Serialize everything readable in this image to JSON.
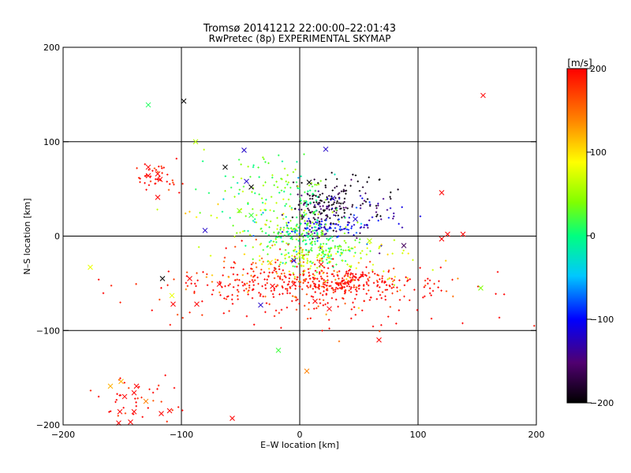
{
  "chart_data": {
    "type": "scatter",
    "title": "Tromsø 20141212 22:00:00–22:01:43",
    "subtitle": "RwPretec (8p) EXPERIMENTAL SKYMAP",
    "xlabel": "E–W location [km]",
    "ylabel": "N–S location [km]",
    "xlim": [
      -200,
      200
    ],
    "ylim": [
      -200,
      200
    ],
    "xticks": [
      -200,
      -100,
      0,
      100,
      200
    ],
    "yticks": [
      -200,
      -100,
      0,
      100,
      200
    ],
    "grid": true,
    "colorbar": {
      "label": "[m/s]",
      "range": [
        -200,
        200
      ],
      "ticks": [
        200,
        100,
        0,
        -100,
        -200
      ],
      "colormap": [
        "#000000",
        "#500070",
        "#0000ff",
        "#00c8ff",
        "#00ff80",
        "#80ff00",
        "#ffff00",
        "#ff8000",
        "#ff0000"
      ]
    },
    "cross_markers": [
      {
        "x": -128,
        "y": 139,
        "v": 10
      },
      {
        "x": -98,
        "y": 143,
        "v": -200
      },
      {
        "x": 155,
        "y": 149,
        "v": 200
      },
      {
        "x": -88,
        "y": 100,
        "v": 60
      },
      {
        "x": -47,
        "y": 91,
        "v": -120
      },
      {
        "x": 22,
        "y": 92,
        "v": -120
      },
      {
        "x": -63,
        "y": 73,
        "v": -200
      },
      {
        "x": -45,
        "y": 58,
        "v": -120
      },
      {
        "x": -41,
        "y": 52,
        "v": -200
      },
      {
        "x": -128,
        "y": 73,
        "v": 200
      },
      {
        "x": -128,
        "y": 64,
        "v": 200
      },
      {
        "x": -120,
        "y": 66,
        "v": 200
      },
      {
        "x": -118,
        "y": 60,
        "v": 200
      },
      {
        "x": -120,
        "y": 41,
        "v": 200
      },
      {
        "x": 120,
        "y": 46,
        "v": 200
      },
      {
        "x": 28,
        "y": 40,
        "v": -120
      },
      {
        "x": 8,
        "y": 57,
        "v": -200
      },
      {
        "x": 47,
        "y": 18,
        "v": -120
      },
      {
        "x": -51,
        "y": 27,
        "v": 40
      },
      {
        "x": -41,
        "y": 22,
        "v": 20
      },
      {
        "x": -80,
        "y": 6,
        "v": -120
      },
      {
        "x": -177,
        "y": -33,
        "v": 80
      },
      {
        "x": -116,
        "y": -45,
        "v": -200
      },
      {
        "x": -108,
        "y": -63,
        "v": 80
      },
      {
        "x": -107,
        "y": -72,
        "v": 200
      },
      {
        "x": -93,
        "y": -45,
        "v": 200
      },
      {
        "x": -87,
        "y": -72,
        "v": 200
      },
      {
        "x": -68,
        "y": -51,
        "v": 200
      },
      {
        "x": -23,
        "y": -53,
        "v": 200
      },
      {
        "x": -5,
        "y": -51,
        "v": 200
      },
      {
        "x": 18,
        "y": -30,
        "v": 200
      },
      {
        "x": 13,
        "y": -69,
        "v": 200
      },
      {
        "x": 25,
        "y": -77,
        "v": 200
      },
      {
        "x": -25,
        "y": -28,
        "v": 100
      },
      {
        "x": 59,
        "y": -5,
        "v": 60
      },
      {
        "x": 88,
        "y": -10,
        "v": -160
      },
      {
        "x": 125,
        "y": 2,
        "v": 200
      },
      {
        "x": 120,
        "y": -3,
        "v": 200
      },
      {
        "x": 138,
        "y": 2,
        "v": 200
      },
      {
        "x": 153,
        "y": -55,
        "v": 40
      },
      {
        "x": 67,
        "y": -110,
        "v": 200
      },
      {
        "x": -18,
        "y": -121,
        "v": 20
      },
      {
        "x": 6,
        "y": -143,
        "v": 140
      },
      {
        "x": -160,
        "y": -159,
        "v": 120
      },
      {
        "x": -151,
        "y": -154,
        "v": 120
      },
      {
        "x": -138,
        "y": -159,
        "v": 200
      },
      {
        "x": -140,
        "y": -166,
        "v": 200
      },
      {
        "x": -130,
        "y": -175,
        "v": 140
      },
      {
        "x": -148,
        "y": -170,
        "v": 200
      },
      {
        "x": -152,
        "y": -186,
        "v": 200
      },
      {
        "x": -140,
        "y": -186,
        "v": 200
      },
      {
        "x": -117,
        "y": -188,
        "v": 200
      },
      {
        "x": -110,
        "y": -185,
        "v": 200
      },
      {
        "x": -153,
        "y": -198,
        "v": 200
      },
      {
        "x": -143,
        "y": -197,
        "v": 200
      },
      {
        "x": -57,
        "y": -193,
        "v": 200
      },
      {
        "x": -33,
        "y": -73,
        "v": -120
      },
      {
        "x": -5,
        "y": -26,
        "v": -120
      }
    ],
    "point_clusters": [
      {
        "cx": 20,
        "cy": 30,
        "sx": 12,
        "sy": 12,
        "v": -180,
        "n": 140
      },
      {
        "cx": 22,
        "cy": 8,
        "sx": 18,
        "sy": 5,
        "v": -110,
        "n": 90
      },
      {
        "cx": 5,
        "cy": 35,
        "sx": 8,
        "sy": 15,
        "v": 10,
        "n": 50
      },
      {
        "cx": -5,
        "cy": 5,
        "sx": 18,
        "sy": 6,
        "v": 20,
        "n": 90
      },
      {
        "cx": 15,
        "cy": -15,
        "sx": 22,
        "sy": 8,
        "v": 20,
        "n": 120
      },
      {
        "cx": 5,
        "cy": -25,
        "sx": 20,
        "sy": 10,
        "v": 60,
        "n": 90
      },
      {
        "cx": 10,
        "cy": -50,
        "sx": 60,
        "sy": 10,
        "v": 200,
        "n": 320
      },
      {
        "cx": 35,
        "cy": -50,
        "sx": 15,
        "sy": 7,
        "v": 200,
        "n": 130
      },
      {
        "cx": -40,
        "cy": -35,
        "sx": 30,
        "sy": 15,
        "v": 170,
        "n": 60
      },
      {
        "cx": 45,
        "cy": 45,
        "sx": 18,
        "sy": 15,
        "v": -200,
        "n": 50
      },
      {
        "cx": 60,
        "cy": 20,
        "sx": 25,
        "sy": 15,
        "v": -120,
        "n": 45
      },
      {
        "cx": -20,
        "cy": 60,
        "sx": 18,
        "sy": 15,
        "v": 40,
        "n": 40
      },
      {
        "cx": -30,
        "cy": 40,
        "sx": 25,
        "sy": 25,
        "v": 10,
        "n": 55
      },
      {
        "cx": -30,
        "cy": 15,
        "sx": 30,
        "sy": 15,
        "v": 70,
        "n": 45
      },
      {
        "cx": -120,
        "cy": 63,
        "sx": 10,
        "sy": 7,
        "v": 200,
        "n": 40
      },
      {
        "cx": -140,
        "cy": -175,
        "sx": 20,
        "sy": 15,
        "v": 200,
        "n": 40
      },
      {
        "cx": 0,
        "cy": -80,
        "sx": 60,
        "sy": 15,
        "v": 200,
        "n": 70
      },
      {
        "cx": 60,
        "cy": -30,
        "sx": 30,
        "sy": 20,
        "v": 90,
        "n": 40
      }
    ]
  }
}
